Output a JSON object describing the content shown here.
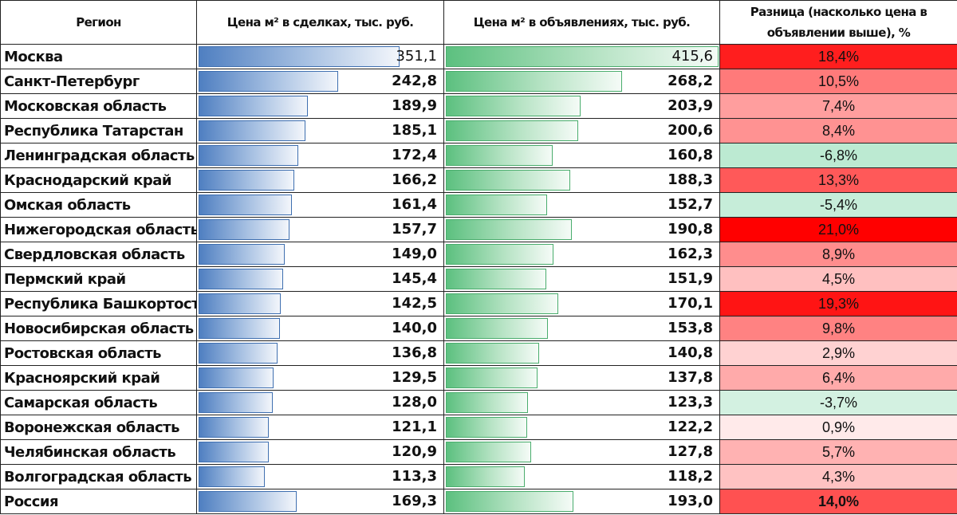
{
  "headers": {
    "region": "Регион",
    "deals": "Цена м² в сделках, тыс. руб.",
    "listings": "Цена м² в объявлениях, тыс. руб.",
    "diff_line1": "Разница (насколько цена в",
    "diff_line2": "объявлении выше), %"
  },
  "scale_max": 415.6,
  "colors": {
    "deal_bar": "#4f7fc1",
    "listing_bar": "#5cc07f",
    "diff_max_positive": "#ff0000",
    "diff_negative": "#c6ead3"
  },
  "rows": [
    {
      "region": "Москва",
      "deals": "351,1",
      "deals_value": 351.1,
      "listings": "415,6",
      "listings_value": 415.6,
      "diff": "18,4%",
      "diff_value": 18.4
    },
    {
      "region": "Санкт-Петербург",
      "deals": "242,8",
      "deals_value": 242.8,
      "listings": "268,2",
      "listings_value": 268.2,
      "diff": "10,5%",
      "diff_value": 10.5
    },
    {
      "region": "Московская область",
      "deals": "189,9",
      "deals_value": 189.9,
      "listings": "203,9",
      "listings_value": 203.9,
      "diff": "7,4%",
      "diff_value": 7.4
    },
    {
      "region": "Республика Татарстан",
      "deals": "185,1",
      "deals_value": 185.1,
      "listings": "200,6",
      "listings_value": 200.6,
      "diff": "8,4%",
      "diff_value": 8.4
    },
    {
      "region": "Ленинградская область",
      "deals": "172,4",
      "deals_value": 172.4,
      "listings": "160,8",
      "listings_value": 160.8,
      "diff": "-6,8%",
      "diff_value": -6.8
    },
    {
      "region": "Краснодарский край",
      "deals": "166,2",
      "deals_value": 166.2,
      "listings": "188,3",
      "listings_value": 188.3,
      "diff": "13,3%",
      "diff_value": 13.3
    },
    {
      "region": "Омская область",
      "deals": "161,4",
      "deals_value": 161.4,
      "listings": "152,7",
      "listings_value": 152.7,
      "diff": "-5,4%",
      "diff_value": -5.4
    },
    {
      "region": "Нижегородская область",
      "deals": "157,7",
      "deals_value": 157.7,
      "listings": "190,8",
      "listings_value": 190.8,
      "diff": "21,0%",
      "diff_value": 21.0
    },
    {
      "region": "Свердловская область",
      "deals": "149,0",
      "deals_value": 149.0,
      "listings": "162,3",
      "listings_value": 162.3,
      "diff": "8,9%",
      "diff_value": 8.9
    },
    {
      "region": "Пермский край",
      "deals": "145,4",
      "deals_value": 145.4,
      "listings": "151,9",
      "listings_value": 151.9,
      "diff": "4,5%",
      "diff_value": 4.5
    },
    {
      "region": "Республика Башкортостан",
      "deals": "142,5",
      "deals_value": 142.5,
      "listings": "170,1",
      "listings_value": 170.1,
      "diff": "19,3%",
      "diff_value": 19.3
    },
    {
      "region": "Новосибирская область",
      "deals": "140,0",
      "deals_value": 140.0,
      "listings": "153,8",
      "listings_value": 153.8,
      "diff": "9,8%",
      "diff_value": 9.8
    },
    {
      "region": "Ростовская область",
      "deals": "136,8",
      "deals_value": 136.8,
      "listings": "140,8",
      "listings_value": 140.8,
      "diff": "2,9%",
      "diff_value": 2.9
    },
    {
      "region": "Красноярский край",
      "deals": "129,5",
      "deals_value": 129.5,
      "listings": "137,8",
      "listings_value": 137.8,
      "diff": "6,4%",
      "diff_value": 6.4
    },
    {
      "region": "Самарская область",
      "deals": "128,0",
      "deals_value": 128.0,
      "listings": "123,3",
      "listings_value": 123.3,
      "diff": "-3,7%",
      "diff_value": -3.7
    },
    {
      "region": "Воронежская область",
      "deals": "121,1",
      "deals_value": 121.1,
      "listings": "122,2",
      "listings_value": 122.2,
      "diff": "0,9%",
      "diff_value": 0.9
    },
    {
      "region": "Челябинская область",
      "deals": "120,9",
      "deals_value": 120.9,
      "listings": "127,8",
      "listings_value": 127.8,
      "diff": "5,7%",
      "diff_value": 5.7
    },
    {
      "region": "Волгоградская область",
      "deals": "113,3",
      "deals_value": 113.3,
      "listings": "118,2",
      "listings_value": 118.2,
      "diff": "4,3%",
      "diff_value": 4.3
    }
  ],
  "total": {
    "region": "Россия",
    "deals": "169,3",
    "deals_value": 169.3,
    "listings": "193,0",
    "listings_value": 193.0,
    "diff": "14,0%",
    "diff_value": 14.0
  }
}
